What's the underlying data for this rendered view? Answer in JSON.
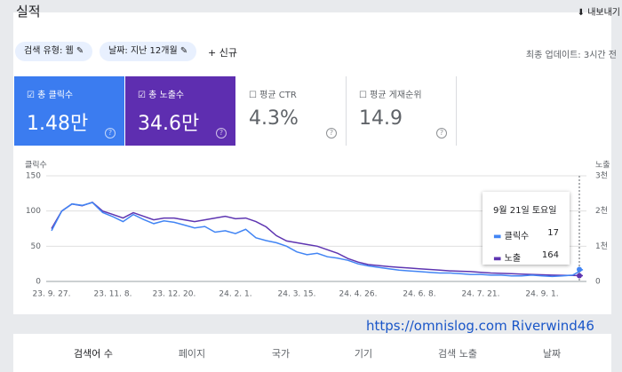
{
  "header": {
    "title": "실적",
    "export": "내보내기"
  },
  "filters": [
    "검색 유형: 웹",
    "날짜: 지난 12개월"
  ],
  "new_filter": "신규",
  "last_updated": "최종 업데이트: 3시간 전",
  "metrics": [
    {
      "label": "총 클릭수",
      "value": "1.48만"
    },
    {
      "label": "총 노출수",
      "value": "34.6만"
    },
    {
      "label": "평균 CTR",
      "value": "4.3%"
    },
    {
      "label": "평균 게재순위",
      "value": "14.9"
    }
  ],
  "chart_data": {
    "type": "line",
    "y_label": "클릭수",
    "y2_label": "노출",
    "categories": [
      "23. 9. 27.",
      null,
      null,
      null,
      null,
      null,
      "23. 11. 8.",
      null,
      null,
      null,
      null,
      null,
      "23. 12. 20.",
      null,
      null,
      null,
      null,
      null,
      "24. 2. 1.",
      null,
      null,
      null,
      null,
      null,
      "24. 3. 15.",
      null,
      null,
      null,
      null,
      null,
      "24. 4. 26.",
      null,
      null,
      null,
      null,
      null,
      "24. 6. 8.",
      null,
      null,
      null,
      null,
      null,
      "24. 7. 21.",
      null,
      null,
      null,
      null,
      null,
      "24. 9. 1.",
      null,
      null,
      null,
      null
    ],
    "series": [
      {
        "name": "클릭수",
        "color": "#4285f4",
        "values": [
          72,
          100,
          110,
          108,
          112,
          98,
          92,
          85,
          95,
          88,
          82,
          86,
          84,
          80,
          76,
          78,
          70,
          72,
          68,
          74,
          62,
          58,
          55,
          50,
          42,
          38,
          40,
          35,
          33,
          30,
          25,
          22,
          20,
          18,
          16,
          15,
          14,
          13,
          12,
          12,
          11,
          10,
          10,
          9,
          9,
          8,
          8,
          9,
          8,
          7,
          8,
          9,
          17
        ]
      },
      {
        "name": "노출",
        "color": "#5e35b1",
        "axis": "y2",
        "values": [
          1500,
          2000,
          2200,
          2150,
          2250,
          2000,
          1900,
          1800,
          1950,
          1850,
          1750,
          1800,
          1800,
          1750,
          1700,
          1750,
          1800,
          1850,
          1780,
          1800,
          1700,
          1550,
          1300,
          1150,
          1100,
          1050,
          1000,
          900,
          800,
          650,
          550,
          480,
          450,
          420,
          400,
          380,
          360,
          340,
          320,
          300,
          290,
          280,
          260,
          240,
          230,
          220,
          210,
          200,
          190,
          180,
          175,
          170,
          164
        ]
      }
    ],
    "ylim": [
      0,
      150
    ],
    "yticks": [
      0,
      50,
      100,
      150
    ],
    "y2lim": [
      0,
      3000
    ],
    "y2ticks": [
      0,
      {
        "value": 1000,
        "label": "1천"
      },
      {
        "value": 2000,
        "label": "2천"
      },
      {
        "value": 3000,
        "label": "3천"
      }
    ],
    "grid": true
  },
  "tooltip": {
    "date": "9월 21일 토요일"
  },
  "watermark": "https://omnislog.com Riverwind46",
  "tabs": [
    "검색어 수",
    "페이지",
    "국가",
    "기기",
    "검색 노출",
    "날짜"
  ]
}
